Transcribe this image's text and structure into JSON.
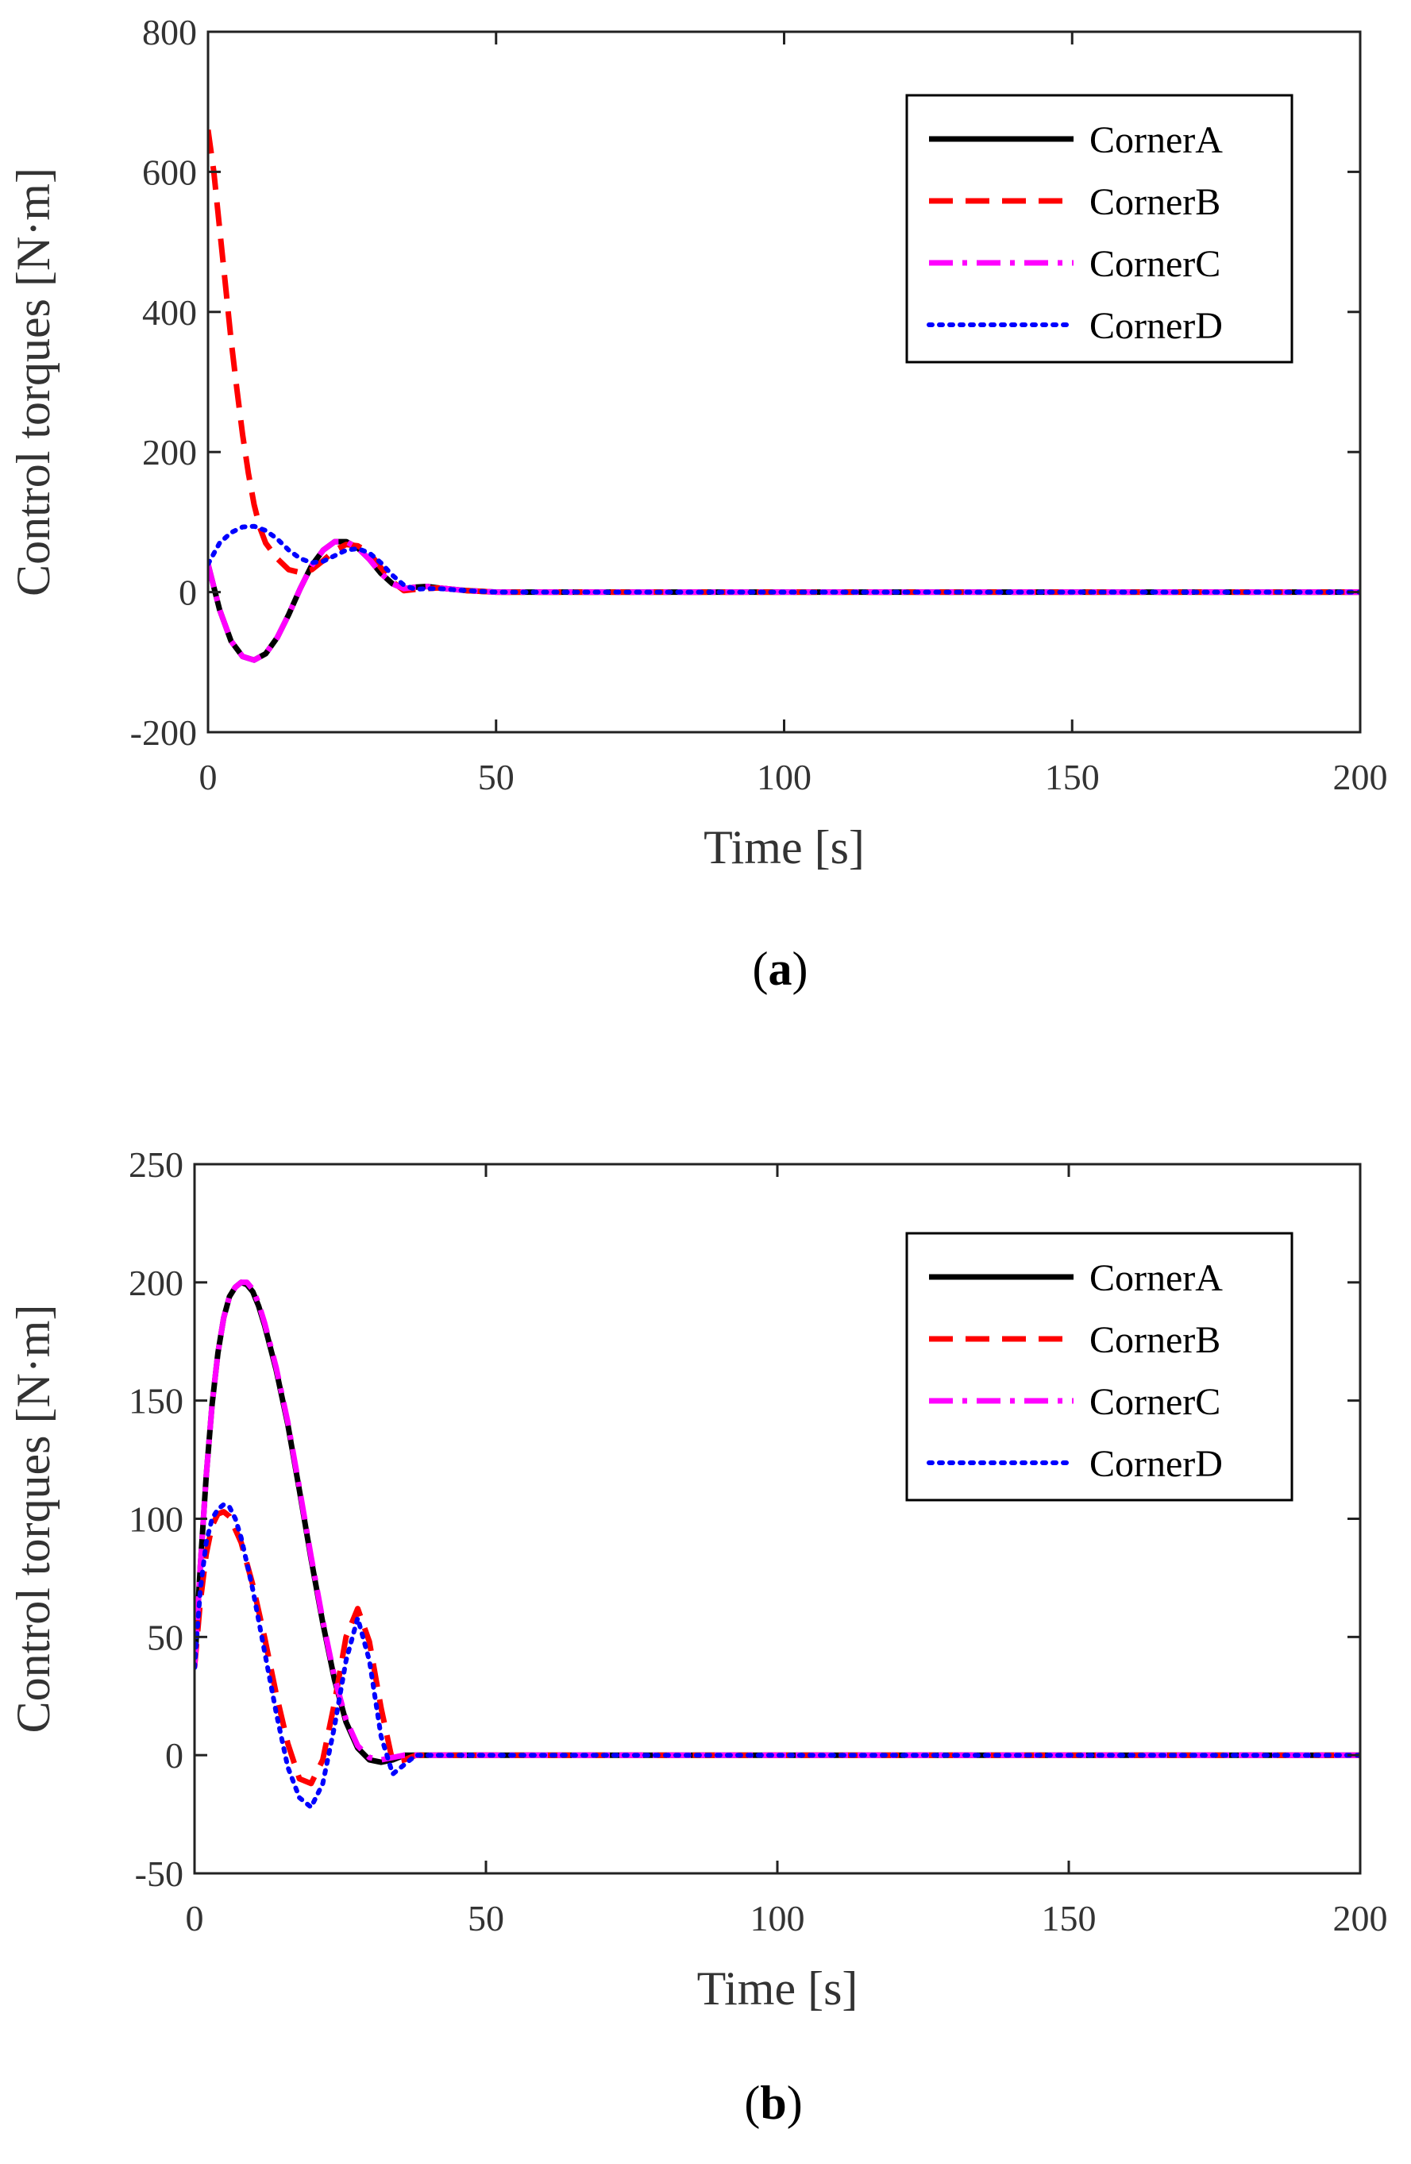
{
  "chart_data": [
    {
      "type": "line",
      "panel": "a",
      "panel_label": "a",
      "xlabel": "Time [s]",
      "ylabel": "Control torques [N·m]",
      "xlim": [
        0,
        200
      ],
      "ylim": [
        -200,
        800
      ],
      "xticks": [
        0,
        50,
        100,
        150,
        200
      ],
      "yticks": [
        -200,
        0,
        200,
        400,
        600,
        800
      ],
      "xtick_labels": [
        "0",
        "50",
        "100",
        "150",
        "200"
      ],
      "ytick_labels": [
        "-200",
        "0",
        "200",
        "400",
        "600",
        "800"
      ],
      "legend_position": "top-right",
      "series": [
        {
          "name": "CornerA",
          "color": "#000000",
          "style": "solid",
          "x": [
            0,
            2,
            4,
            6,
            8,
            10,
            12,
            14,
            16,
            18,
            20,
            22,
            24,
            26,
            28,
            30,
            32,
            34,
            36,
            38,
            40,
            45,
            50,
            60,
            80,
            100,
            150,
            200
          ],
          "y": [
            40,
            -25,
            -70,
            -92,
            -97,
            -88,
            -65,
            -32,
            5,
            38,
            60,
            72,
            72,
            63,
            47,
            27,
            12,
            5,
            7,
            8,
            6,
            2,
            0,
            0,
            0,
            0,
            0,
            0
          ]
        },
        {
          "name": "CornerB",
          "color": "#ff0000",
          "style": "dashed",
          "x": [
            0,
            1,
            2,
            3,
            4,
            5,
            6,
            7,
            8,
            9,
            10,
            12,
            14,
            16,
            18,
            20,
            22,
            24,
            26,
            28,
            30,
            32,
            34,
            36,
            40,
            45,
            50,
            60,
            80,
            100,
            150,
            200
          ],
          "y": [
            660,
            600,
            520,
            440,
            360,
            290,
            225,
            170,
            125,
            92,
            70,
            48,
            32,
            28,
            32,
            45,
            60,
            68,
            66,
            56,
            35,
            15,
            2,
            4,
            6,
            2,
            0,
            0,
            0,
            0,
            0,
            0
          ]
        },
        {
          "name": "CornerC",
          "color": "#ff00ff",
          "style": "dashdot",
          "x": [
            0,
            2,
            4,
            6,
            8,
            10,
            12,
            14,
            16,
            18,
            20,
            22,
            24,
            26,
            28,
            30,
            32,
            34,
            36,
            38,
            40,
            45,
            50,
            60,
            80,
            100,
            150,
            200
          ],
          "y": [
            40,
            -25,
            -70,
            -92,
            -97,
            -88,
            -65,
            -32,
            5,
            38,
            60,
            72,
            72,
            63,
            47,
            27,
            12,
            5,
            7,
            8,
            6,
            2,
            0,
            0,
            0,
            0,
            0,
            0
          ]
        },
        {
          "name": "CornerD",
          "color": "#0000ff",
          "style": "dotted",
          "x": [
            0,
            2,
            4,
            6,
            8,
            10,
            12,
            14,
            16,
            18,
            20,
            22,
            24,
            26,
            28,
            30,
            32,
            34,
            36,
            38,
            40,
            45,
            50,
            60,
            80,
            100,
            150,
            200
          ],
          "y": [
            40,
            70,
            85,
            93,
            94,
            88,
            76,
            60,
            48,
            42,
            44,
            52,
            60,
            62,
            56,
            42,
            24,
            10,
            4,
            5,
            5,
            2,
            0,
            0,
            0,
            0,
            0,
            0
          ]
        }
      ]
    },
    {
      "type": "line",
      "panel": "b",
      "panel_label": "b",
      "xlabel": "Time [s]",
      "ylabel": "Control torques [N·m]",
      "xlim": [
        0,
        200
      ],
      "ylim": [
        -50,
        250
      ],
      "xticks": [
        0,
        50,
        100,
        150,
        200
      ],
      "yticks": [
        -50,
        0,
        50,
        100,
        150,
        200,
        250
      ],
      "xtick_labels": [
        "0",
        "50",
        "100",
        "150",
        "200"
      ],
      "ytick_labels": [
        "-50",
        "0",
        "50",
        "100",
        "150",
        "200",
        "250"
      ],
      "legend_position": "top-right",
      "series": [
        {
          "name": "CornerA",
          "color": "#000000",
          "style": "solid",
          "x": [
            0,
            1,
            2,
            3,
            4,
            5,
            6,
            7,
            8,
            9,
            10,
            11,
            12,
            14,
            16,
            18,
            20,
            22,
            24,
            26,
            28,
            30,
            32,
            34,
            36,
            38,
            40,
            45,
            50,
            60,
            80,
            100,
            150,
            200
          ],
          "y": [
            37,
            80,
            118,
            148,
            170,
            185,
            194,
            198,
            200,
            199,
            196,
            190,
            182,
            163,
            140,
            112,
            83,
            56,
            32,
            14,
            3,
            -2,
            -3,
            -2,
            0,
            0,
            0,
            0,
            0,
            0,
            0,
            0,
            0,
            0
          ]
        },
        {
          "name": "CornerB",
          "color": "#ff0000",
          "style": "dashed",
          "x": [
            0,
            1,
            2,
            3,
            4,
            5,
            6,
            8,
            10,
            12,
            14,
            16,
            18,
            20,
            22,
            24,
            26,
            28,
            30,
            32,
            34,
            36,
            38,
            40,
            45,
            50,
            60,
            80,
            100,
            150,
            200
          ],
          "y": [
            37,
            65,
            85,
            97,
            102,
            103,
            101,
            90,
            72,
            50,
            26,
            5,
            -10,
            -12,
            -2,
            22,
            50,
            62,
            48,
            20,
            -3,
            -2,
            0,
            0,
            0,
            0,
            0,
            0,
            0,
            0,
            0
          ]
        },
        {
          "name": "CornerC",
          "color": "#ff00ff",
          "style": "dashdot",
          "x": [
            0,
            1,
            2,
            3,
            4,
            5,
            6,
            7,
            8,
            9,
            10,
            11,
            12,
            14,
            16,
            18,
            20,
            22,
            24,
            26,
            28,
            30,
            32,
            34,
            36,
            38,
            40,
            45,
            50,
            60,
            80,
            100,
            150,
            200
          ],
          "y": [
            37,
            80,
            118,
            148,
            170,
            185,
            194,
            198,
            200,
            200,
            197,
            191,
            183,
            164,
            141,
            113,
            84,
            57,
            33,
            15,
            4,
            -1,
            -2,
            -1,
            0,
            0,
            0,
            0,
            0,
            0,
            0,
            0,
            0,
            0
          ]
        },
        {
          "name": "CornerD",
          "color": "#0000ff",
          "style": "dotted",
          "x": [
            0,
            1,
            2,
            3,
            4,
            5,
            6,
            7,
            8,
            10,
            12,
            14,
            16,
            18,
            20,
            22,
            24,
            26,
            28,
            30,
            32,
            34,
            36,
            38,
            40,
            45,
            50,
            60,
            80,
            100,
            150,
            200
          ],
          "y": [
            37,
            70,
            90,
            100,
            104,
            106,
            105,
            100,
            92,
            70,
            44,
            18,
            -5,
            -18,
            -22,
            -12,
            12,
            40,
            58,
            40,
            8,
            -8,
            -4,
            0,
            0,
            0,
            0,
            0,
            0,
            0,
            0,
            0
          ]
        }
      ]
    }
  ]
}
